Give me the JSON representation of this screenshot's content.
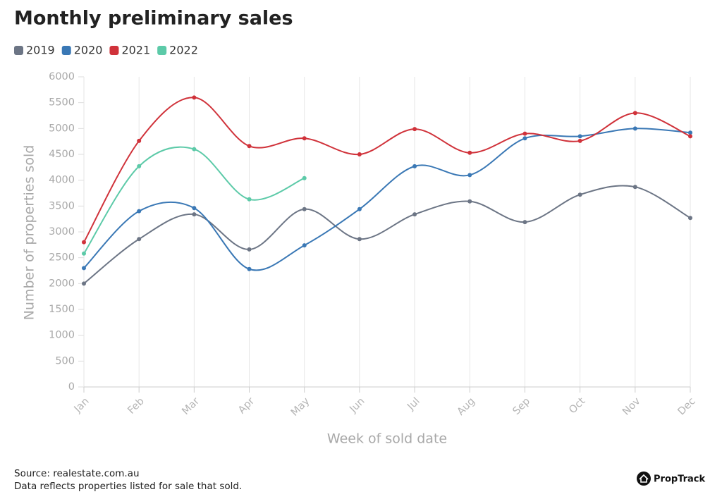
{
  "chart_data": {
    "type": "line",
    "title": "Monthly preliminary sales",
    "xlabel": "Week of sold date",
    "ylabel": "Number of properties sold",
    "categories": [
      "Jan",
      "Feb",
      "Mar",
      "Apr",
      "May",
      "Jun",
      "Jul",
      "Aug",
      "Sep",
      "Oct",
      "Nov",
      "Dec"
    ],
    "series": [
      {
        "name": "2019",
        "color": "#6c7585",
        "values": [
          2000,
          2860,
          3340,
          2660,
          3440,
          2860,
          3340,
          3590,
          3190,
          3720,
          3870,
          3270
        ]
      },
      {
        "name": "2020",
        "color": "#3a78b5",
        "values": [
          2300,
          3400,
          3460,
          2280,
          2740,
          3440,
          4270,
          4100,
          4810,
          4850,
          5000,
          4920
        ]
      },
      {
        "name": "2021",
        "color": "#d0323a",
        "values": [
          2800,
          4760,
          5600,
          4660,
          4810,
          4500,
          4990,
          4530,
          4900,
          4760,
          5300,
          4850
        ]
      },
      {
        "name": "2022",
        "color": "#5ccaa8",
        "values": [
          2580,
          4270,
          4600,
          3630,
          4040,
          null,
          null,
          null,
          null,
          null,
          null,
          null
        ]
      }
    ],
    "ylim": [
      0,
      6000
    ],
    "yticks": [
      0,
      500,
      1000,
      1500,
      2000,
      2500,
      3000,
      3500,
      4000,
      4500,
      5000,
      5500,
      6000
    ],
    "grid": "x",
    "smooth": true,
    "legend": "top-left",
    "source": "Source: realestate.com.au",
    "note": "Data reflects properties listed for sale that sold.",
    "brand": "PropTrack"
  }
}
